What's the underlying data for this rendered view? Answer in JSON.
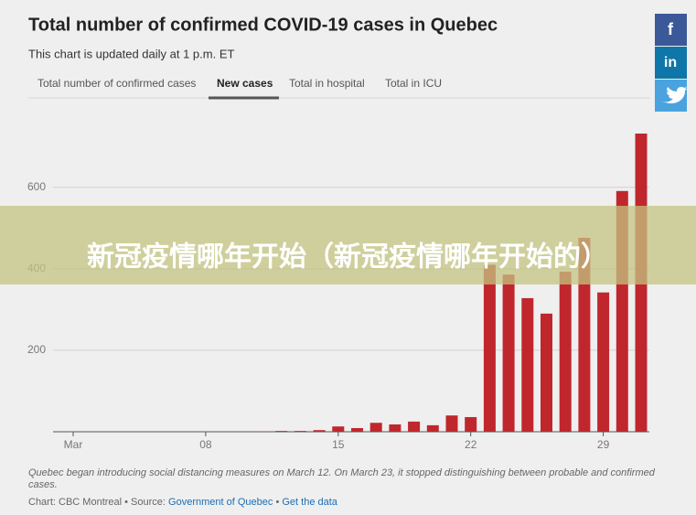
{
  "chart_data": {
    "type": "bar",
    "title": "Total number of confirmed COVID-19 cases in Quebec",
    "subtitle": "This chart is updated daily at 1 p.m. ET",
    "tabs": [
      "Total number of confirmed cases",
      "New cases",
      "Total in hospital",
      "Total in ICU"
    ],
    "categories": [
      "Mar",
      null,
      null,
      null,
      null,
      null,
      null,
      "08",
      null,
      null,
      null,
      null,
      null,
      null,
      "15",
      null,
      null,
      null,
      null,
      null,
      null,
      "22",
      null,
      null,
      null,
      null,
      null,
      null,
      "29",
      null,
      null
    ],
    "values": [
      0,
      0,
      0,
      0,
      0,
      0,
      0,
      0,
      0,
      0,
      1,
      2,
      2,
      4,
      13,
      9,
      22,
      18,
      25,
      16,
      40,
      36,
      410,
      386,
      328,
      290,
      393,
      476,
      342,
      591,
      732
    ],
    "color": "#c0272d",
    "ylim": [
      0,
      750
    ],
    "yticks": [
      200,
      400,
      600
    ],
    "grid": true,
    "note": "Quebec began introducing social distancing measures on March 12. On March 23, it stopped distinguishing between probable and confirmed cases.",
    "credit": "Chart: CBC Montreal • Source:",
    "source_link": "Government of Quebec",
    "separator": "•",
    "data_link": "Get the data"
  },
  "overlay": "新冠疫情哪年开始（新冠疫情哪年开始的）",
  "social": [
    "f",
    "in"
  ]
}
